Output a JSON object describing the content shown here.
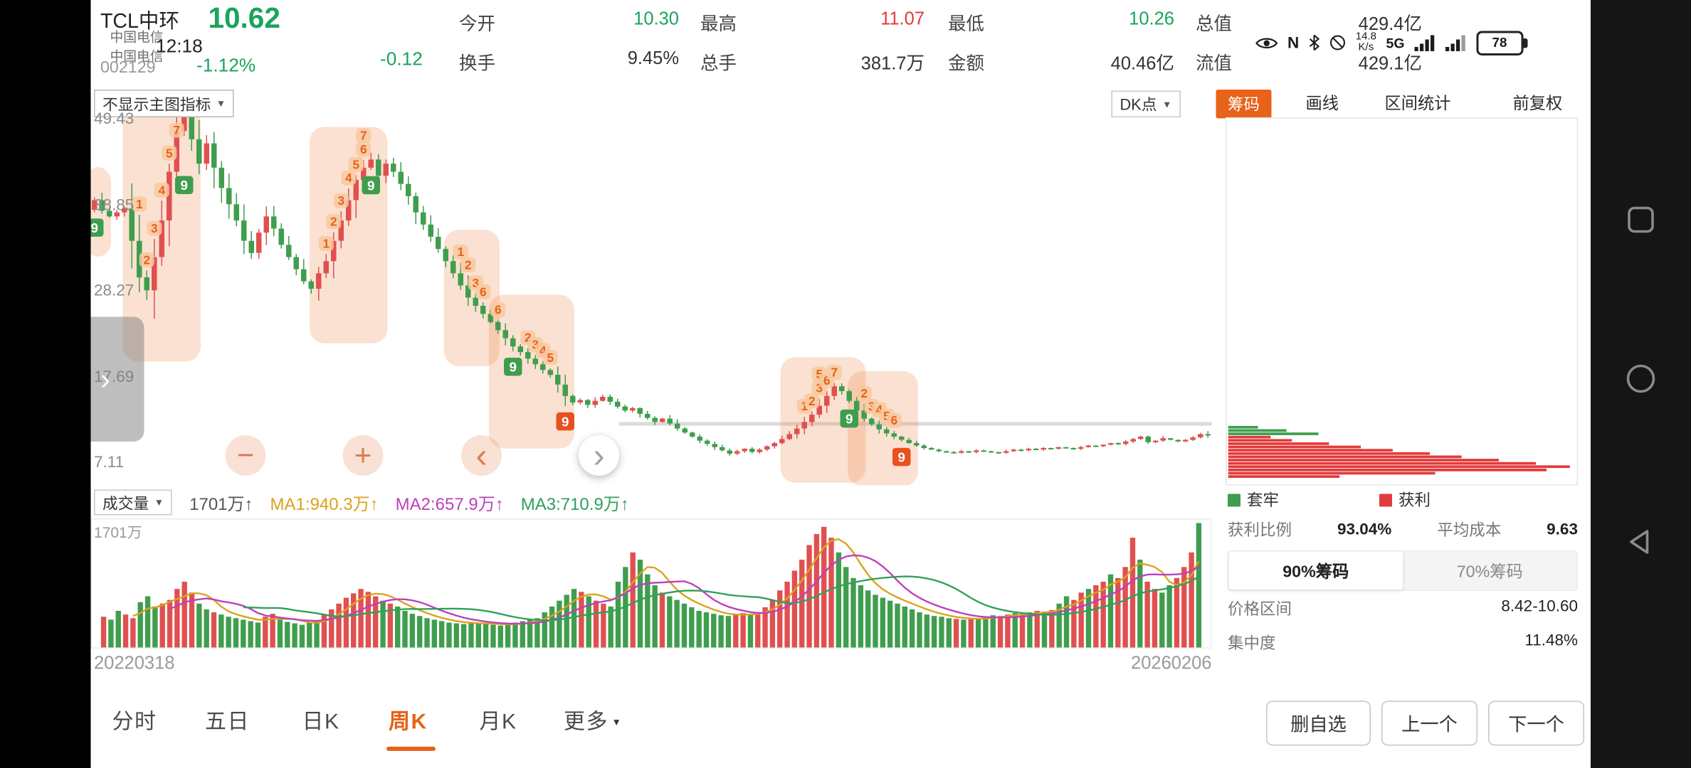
{
  "header": {
    "stock_name": "TCL中环",
    "stock_code": "002129",
    "ghost_line1": "中国电信",
    "ghost_line2": "中国电信",
    "time": "12:18",
    "price": "10.62",
    "change_pct": "-1.12%",
    "change_val": "-0.12",
    "stats": [
      {
        "label": "今开",
        "value": "10.30",
        "color": "green"
      },
      {
        "label": "最高",
        "value": "11.07",
        "color": "red"
      },
      {
        "label": "最低",
        "value": "10.26",
        "color": "green"
      },
      {
        "label": "总值",
        "value": "429.4亿",
        "color": "dark"
      },
      {
        "label": "换手",
        "value": "9.45%",
        "color": "dark"
      },
      {
        "label": "总手",
        "value": "381.7万",
        "color": "dark"
      },
      {
        "label": "金额",
        "value": "40.46亿",
        "color": "dark"
      },
      {
        "label": "流值",
        "value": "429.1亿",
        "color": "dark"
      }
    ],
    "status": {
      "nfc": "N",
      "speed_value": "14.8",
      "speed_unit": "K/s",
      "network": "5G",
      "battery_percent": "78"
    }
  },
  "toolbar": {
    "indicator_selector": "不显示主图指标",
    "dk_point": "DK点",
    "chips": "筹码",
    "draw_line": "画线",
    "range_stats": "区间统计",
    "adjustment": "前复权"
  },
  "main_chart": {
    "y_axis": [
      "49.43",
      "38.85",
      "28.27",
      "17.69",
      "7.11"
    ],
    "start_date": "20220318",
    "end_date": "20260206"
  },
  "volume": {
    "selector": "成交量",
    "current": "1701万↑",
    "ma1": "MA1:940.3万↑",
    "ma2": "MA2:657.9万↑",
    "ma3": "MA3:710.9万↑",
    "axis_max": "1701万"
  },
  "chip_panel": {
    "legend_trapped": "套牢",
    "legend_profit": "获利",
    "profit_ratio_label": "获利比例",
    "profit_ratio": "93.04%",
    "avg_cost_label": "平均成本",
    "avg_cost": "9.63",
    "tab_90": "90%筹码",
    "tab_70": "70%筹码",
    "price_range_label": "价格区间",
    "price_range": "8.42-10.60",
    "concentration_label": "集中度",
    "concentration": "11.48%",
    "bars_green": [
      28,
      55,
      85
    ],
    "bars_red": [
      40,
      60,
      95,
      125,
      155,
      190,
      220,
      255,
      290,
      322,
      300,
      195,
      105
    ]
  },
  "bottom_bar": {
    "tabs": [
      "分时",
      "五日",
      "日K",
      "周K",
      "月K",
      "更多"
    ],
    "active_tab": "周K",
    "buttons": [
      "删自选",
      "上一个",
      "下一个"
    ]
  },
  "icons": {
    "caret_down": "▼",
    "chevron_right": "›",
    "chevron_left": "‹",
    "minus": "−",
    "plus": "+"
  },
  "chart_data": {
    "type": "candlestick+volume",
    "period": "weekly",
    "x_range": [
      "20220318",
      "20260206"
    ],
    "y_axis_values": [
      49.43,
      38.85,
      28.27,
      17.69,
      7.11
    ],
    "last_high": 11.07,
    "last_low": 10.26,
    "last_close": 10.62,
    "avg_line_price": 12.2,
    "closes": [
      39.5,
      38.2,
      37.5,
      38.0,
      38.5,
      34.5,
      30.0,
      28.4,
      32.5,
      37.0,
      43.0,
      48.0,
      50.5,
      47.0,
      44.0,
      46.5,
      43.5,
      41.0,
      39.0,
      37.0,
      34.5,
      33.0,
      35.5,
      37.5,
      36.0,
      34.0,
      32.5,
      31.0,
      29.5,
      28.6,
      30.5,
      32.0,
      34.5,
      37.0,
      39.5,
      42.0,
      43.5,
      44.5,
      42.5,
      44.0,
      43.0,
      41.5,
      40.0,
      38.0,
      36.5,
      35.0,
      33.5,
      32.0,
      30.5,
      29.0,
      27.5,
      26.5,
      25.5,
      24.5,
      23.5,
      22.5,
      21.5,
      20.8,
      20.0,
      19.3,
      18.6,
      18.0,
      16.8,
      15.4,
      14.6,
      14.9,
      14.3,
      14.8,
      15.3,
      14.7,
      14.1,
      13.6,
      13.9,
      13.2,
      12.7,
      12.2,
      12.6,
      12.0,
      11.4,
      10.9,
      10.4,
      9.9,
      9.5,
      9.1,
      8.7,
      8.3,
      8.6,
      8.9,
      8.5,
      8.8,
      9.2,
      9.6,
      10.1,
      10.7,
      11.4,
      12.2,
      13.1,
      14.2,
      15.4,
      16.6,
      16.0,
      14.8,
      13.6,
      12.6,
      11.9,
      11.3,
      10.8,
      10.4,
      10.0,
      9.6,
      9.3,
      9.0,
      8.8,
      8.6,
      8.5,
      8.4,
      8.6,
      8.5,
      8.7,
      8.6,
      8.5,
      8.4,
      8.6,
      8.8,
      8.7,
      8.9,
      8.8,
      9.0,
      8.9,
      9.1,
      9.0,
      8.9,
      9.1,
      9.3,
      9.2,
      9.4,
      9.6,
      9.5,
      9.8,
      10.1,
      10.4,
      9.7,
      9.9,
      10.2,
      10.0,
      9.8,
      10.0,
      10.3,
      10.7,
      10.62
    ],
    "volumes": [
      420,
      380,
      500,
      450,
      400,
      620,
      700,
      560,
      600,
      650,
      800,
      900,
      750,
      600,
      520,
      480,
      450,
      420,
      400,
      380,
      360,
      340,
      420,
      460,
      380,
      350,
      330,
      310,
      340,
      360,
      450,
      520,
      600,
      680,
      740,
      800,
      760,
      700,
      640,
      600,
      560,
      500,
      460,
      430,
      400,
      380,
      360,
      340,
      330,
      320,
      340,
      330,
      320,
      310,
      300,
      320,
      340,
      360,
      380,
      400,
      480,
      560,
      640,
      720,
      800,
      760,
      700,
      640,
      600,
      560,
      900,
      1100,
      1300,
      1200,
      1000,
      850,
      750,
      700,
      650,
      600,
      550,
      500,
      480,
      460,
      440,
      430,
      450,
      470,
      460,
      480,
      550,
      650,
      780,
      900,
      1050,
      1200,
      1400,
      1550,
      1650,
      1500,
      1300,
      1100,
      950,
      850,
      780,
      720,
      680,
      640,
      600,
      560,
      520,
      480,
      450,
      430,
      420,
      400,
      390,
      380,
      390,
      400,
      420,
      440,
      430,
      450,
      470,
      460,
      480,
      500,
      490,
      510,
      600,
      700,
      650,
      750,
      800,
      850,
      900,
      1000,
      950,
      1100,
      1500,
      1200,
      900,
      800,
      750,
      850,
      950,
      1100,
      1300,
      1701
    ],
    "markers": [
      {
        "i": 0,
        "t": "9",
        "k": "g"
      },
      {
        "i": 6,
        "t": "1",
        "k": "n"
      },
      {
        "i": 7,
        "t": "2",
        "k": "n"
      },
      {
        "i": 8,
        "t": "3",
        "k": "n"
      },
      {
        "i": 9,
        "t": "4",
        "k": "n"
      },
      {
        "i": 10,
        "t": "5",
        "k": "n"
      },
      {
        "i": 11,
        "t": "7",
        "k": "n"
      },
      {
        "i": 12,
        "t": "9",
        "k": "g"
      },
      {
        "i": 31,
        "t": "1",
        "k": "n"
      },
      {
        "i": 32,
        "t": "2",
        "k": "n"
      },
      {
        "i": 33,
        "t": "3",
        "k": "n"
      },
      {
        "i": 34,
        "t": "4",
        "k": "n"
      },
      {
        "i": 35,
        "t": "5",
        "k": "n"
      },
      {
        "i": 36,
        "t": "6",
        "k": "n"
      },
      {
        "i": 36,
        "t": "7",
        "k": "n"
      },
      {
        "i": 37,
        "t": "9",
        "k": "g"
      },
      {
        "i": 49,
        "t": "1",
        "k": "n"
      },
      {
        "i": 50,
        "t": "2",
        "k": "n"
      },
      {
        "i": 51,
        "t": "3",
        "k": "n"
      },
      {
        "i": 52,
        "t": "6",
        "k": "n"
      },
      {
        "i": 54,
        "t": "6",
        "k": "n"
      },
      {
        "i": 56,
        "t": "9",
        "k": "g"
      },
      {
        "i": 58,
        "t": "2",
        "k": "n"
      },
      {
        "i": 59,
        "t": "3",
        "k": "n"
      },
      {
        "i": 60,
        "t": "4",
        "k": "n"
      },
      {
        "i": 61,
        "t": "5",
        "k": "n"
      },
      {
        "i": 63,
        "t": "9",
        "k": "r"
      },
      {
        "i": 95,
        "t": "1",
        "k": "n"
      },
      {
        "i": 96,
        "t": "2",
        "k": "n"
      },
      {
        "i": 97,
        "t": "3",
        "k": "n"
      },
      {
        "i": 97,
        "t": "5",
        "k": "n"
      },
      {
        "i": 98,
        "t": "6",
        "k": "n"
      },
      {
        "i": 99,
        "t": "7",
        "k": "n"
      },
      {
        "i": 101,
        "t": "9",
        "k": "g"
      },
      {
        "i": 103,
        "t": "2",
        "k": "n"
      },
      {
        "i": 104,
        "t": "3",
        "k": "n"
      },
      {
        "i": 105,
        "t": "4",
        "k": "n"
      },
      {
        "i": 106,
        "t": "5",
        "k": "n"
      },
      {
        "i": 107,
        "t": "6",
        "k": "n"
      },
      {
        "i": 108,
        "t": "9",
        "k": "r"
      }
    ],
    "glow_ranges": [
      [
        0,
        1
      ],
      [
        5,
        13
      ],
      [
        30,
        38
      ],
      [
        48,
        53
      ],
      [
        54,
        63
      ],
      [
        93,
        102
      ],
      [
        102,
        109
      ]
    ],
    "colors": {
      "up": "#e05050",
      "down": "#3f9e4d",
      "glow": "#f0945a",
      "accent": "#e8621a",
      "badge_green": "#3f9e4d",
      "badge_red": "#e8501e",
      "ma1": "#dba21c",
      "ma2": "#bc40bc",
      "ma3": "#2fa05c",
      "chip_green": "#3f9e4d",
      "chip_red": "#e23b3b"
    }
  }
}
